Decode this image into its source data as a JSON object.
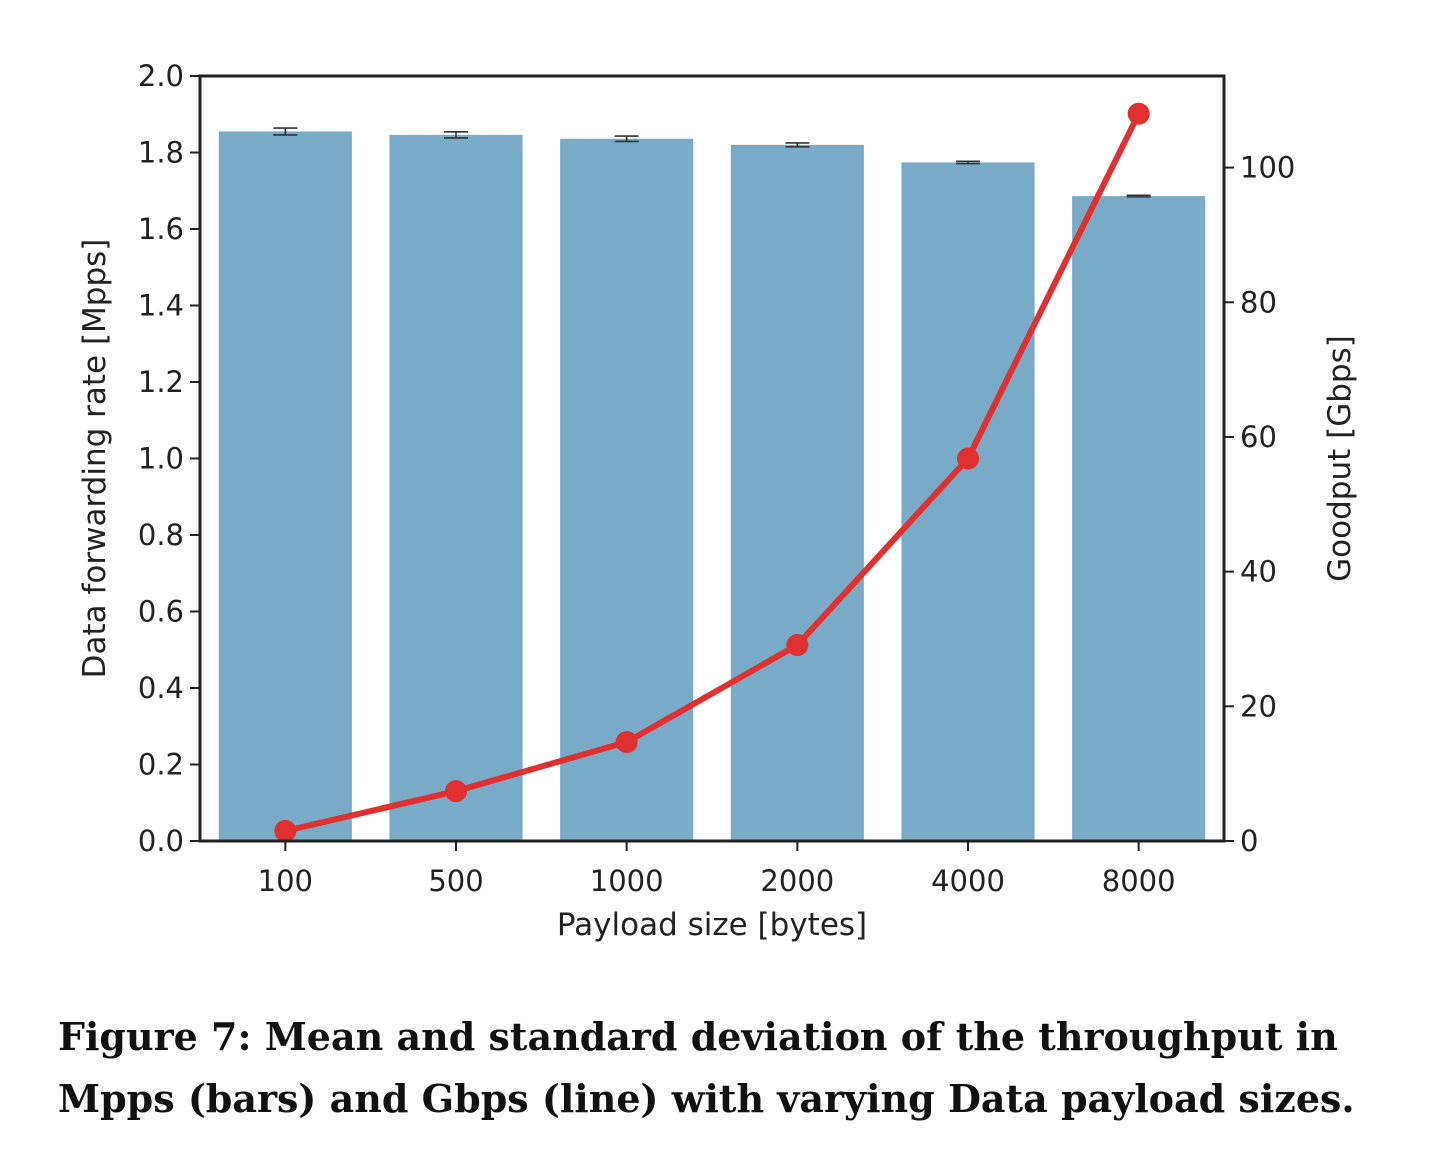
{
  "caption": "Figure 7: Mean and standard deviation of the throughput in Mpps (bars) and Gbps (line) with varying Data payload sizes.",
  "chart_data": {
    "type": "bar",
    "title": "",
    "xlabel": "Payload size [bytes]",
    "ylabel": "Data forwarding rate [Mpps]",
    "y2label": "Goodput [Gbps]",
    "categories": [
      "100",
      "500",
      "1000",
      "2000",
      "4000",
      "8000"
    ],
    "ylim": [
      0,
      2.0
    ],
    "y2lim": [
      0,
      113.6
    ],
    "yticks": [
      "0.0",
      "0.2",
      "0.4",
      "0.6",
      "0.8",
      "1.0",
      "1.2",
      "1.4",
      "1.6",
      "1.8",
      "2.0"
    ],
    "y2ticks": [
      "0",
      "20",
      "40",
      "60",
      "80",
      "100"
    ],
    "grid": false,
    "series": [
      {
        "type": "bar",
        "axis": "left",
        "color": "#79aac8",
        "values": [
          1.855,
          1.846,
          1.836,
          1.82,
          1.774,
          1.686
        ],
        "error": [
          0.009,
          0.008,
          0.007,
          0.005,
          0.003,
          0.002
        ]
      },
      {
        "type": "line",
        "axis": "right",
        "color": "#e03030",
        "values": [
          1.5,
          7.4,
          14.7,
          29.1,
          56.8,
          108.0
        ]
      }
    ]
  }
}
